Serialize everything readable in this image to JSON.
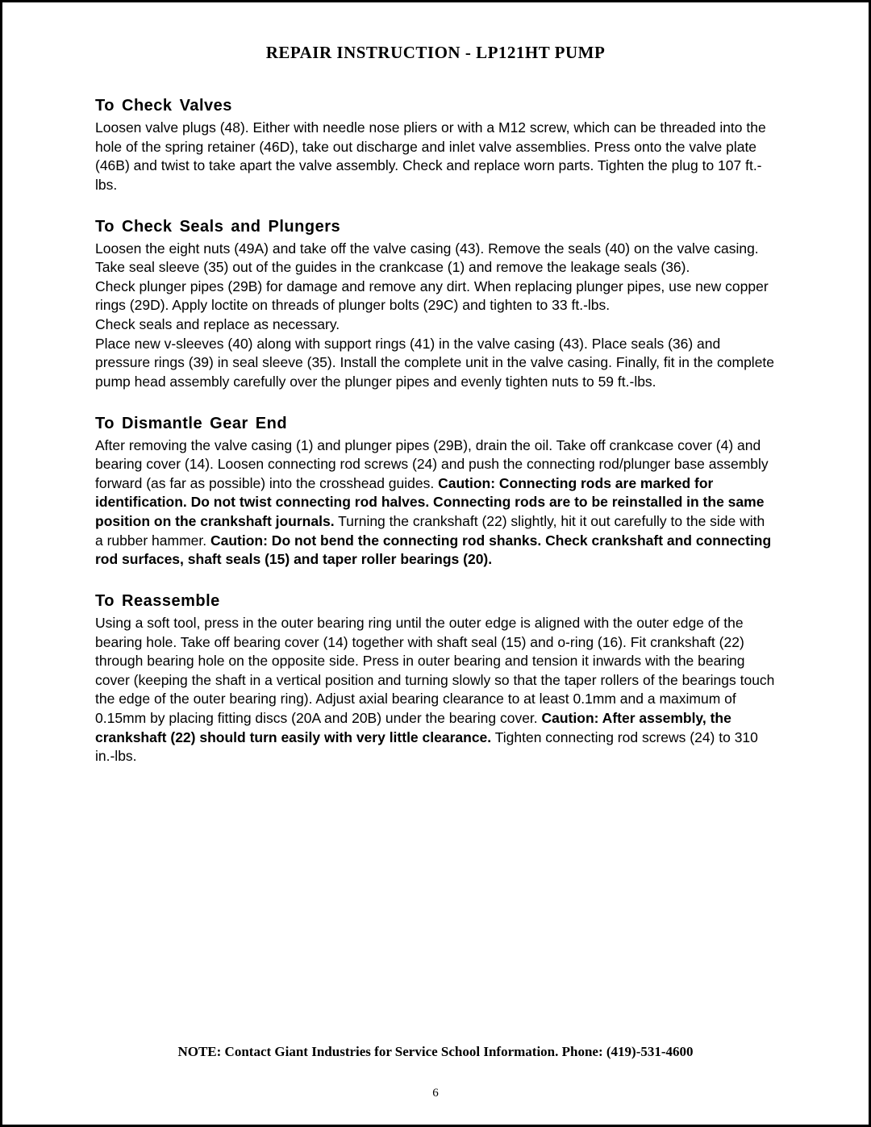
{
  "document": {
    "title": "REPAIR INSTRUCTION - LP121HT PUMP",
    "page_number": "6",
    "footer_note": "NOTE:  Contact Giant Industries for Service School Information.  Phone: (419)-531-4600",
    "typography": {
      "title_font": "serif",
      "title_size_pt": 16,
      "heading_font": "sans-serif",
      "heading_size_pt": 15,
      "body_font": "sans-serif",
      "body_size_pt": 13,
      "text_color": "#000000",
      "background_color": "#ffffff",
      "border_color": "#000000"
    },
    "sections": [
      {
        "heading": "To Check Valves",
        "body_html": "Loosen valve plugs (48).  Either with needle nose pliers or with a M12 screw, which can be threaded into the hole of the spring retainer (46D), take out discharge and inlet valve assemblies.  Press onto the valve plate (46B) and twist to take apart the valve assembly.  Check and replace worn parts.  Tighten the plug to 107 ft.-lbs."
      },
      {
        "heading": "To Check Seals and Plungers",
        "body_html": "Loosen the eight nuts (49A) and take off the valve casing (43).  Remove the seals (40) on the valve casing.  Take seal sleeve (35) out of the guides in the crankcase (1) and remove the leakage seals (36).<br>Check plunger pipes (29B) for damage and remove any dirt.  When replacing plunger pipes, use new copper rings (29D).  Apply loctite on threads of plunger bolts (29C) and tighten to 33 ft.-lbs.<br>Check seals and replace as necessary.<br>Place new v-sleeves (40) along with support rings (41) in the valve casing (43).  Place seals (36) and pressure rings (39) in seal sleeve (35).  Install the complete unit in the valve casing.  Finally, fit in the complete pump head assembly carefully over the plunger pipes and evenly tighten nuts to 59 ft.-lbs."
      },
      {
        "heading": "To Dismantle Gear End",
        "body_html": "After removing the valve casing (1) and plunger pipes (29B), drain the oil.  Take off crankcase cover (4) and bearing cover (14).  Loosen connecting rod screws (24) and push the connecting rod/plunger base assembly forward (as far as possible) into the crosshead guides.  <span class=\"bold-run\">Caution:  Connecting rods are marked for identification.  Do not twist connecting rod halves.  Connecting rods are to be reinstalled in the same position on the crankshaft journals.</span>  Turning the crankshaft (22) slightly, hit it out carefully to the side with a rubber hammer.  <span class=\"bold-run\">Caution:  Do not bend the connecting rod shanks.  Check crankshaft and connecting rod surfaces, shaft seals (15) and taper roller bearings (20).</span>"
      },
      {
        "heading": "To Reassemble",
        "body_html": "Using a soft tool, press in the outer bearing ring until the outer edge is aligned with the outer edge of the bearing hole.  Take off bearing cover (14) together with shaft seal (15) and o-ring (16).  Fit crankshaft (22) through bearing hole on the opposite side.  Press in outer bearing and tension it inwards with the bearing cover (keeping the shaft in a vertical position and turning slowly so that the taper rollers of the bearings touch the edge of the outer bearing ring).  Adjust axial bearing clearance to at least 0.1mm and a maximum of 0.15mm by placing fitting discs (20A and 20B) under the bearing cover.  <span class=\"bold-run\">Caution:  After assembly, the crankshaft (22) should turn easily with very little clearance.</span>  Tighten connecting rod screws (24) to 310 in.-lbs."
      }
    ]
  }
}
